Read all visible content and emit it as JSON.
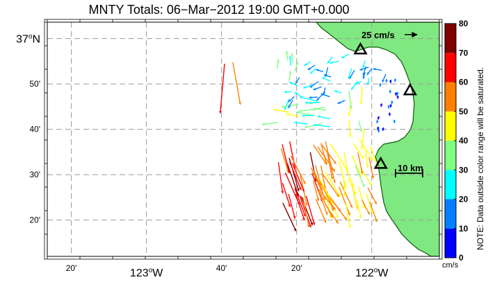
{
  "title": "MNTY Totals: 06−Mar−2012 19:00 GMT+0.000",
  "scale_arrow_label": "25 cm/s",
  "scale_bar_label": "10 km",
  "note": "NOTE: Data outside color range will be saturated.",
  "colorbar": {
    "unit": "cm/s",
    "ticks": [
      "0",
      "10",
      "20",
      "30",
      "40",
      "50",
      "60",
      "70",
      "80"
    ],
    "colors": [
      "#0000ff",
      "#0080ff",
      "#00ffff",
      "#80ff80",
      "#ffff00",
      "#ff8000",
      "#ff0000",
      "#800000"
    ]
  },
  "map": {
    "lat_labels": [
      {
        "lat": 37.0,
        "main": "37",
        "deg": "o",
        "suffix": "N"
      },
      {
        "lat": 36.8333,
        "main": "50'",
        "deg": "",
        "suffix": ""
      },
      {
        "lat": 36.6667,
        "main": "40'",
        "deg": "",
        "suffix": ""
      },
      {
        "lat": 36.5,
        "main": "30'",
        "deg": "",
        "suffix": ""
      },
      {
        "lat": 36.3333,
        "main": "20'",
        "deg": "",
        "suffix": ""
      }
    ],
    "lon_labels": [
      {
        "lon": -123.3333,
        "main": "20'",
        "deg": "",
        "suffix": "",
        "big": false
      },
      {
        "lon": -123.0,
        "main": "123",
        "deg": "o",
        "suffix": "W",
        "big": true
      },
      {
        "lon": -122.6667,
        "main": "40'",
        "deg": "",
        "suffix": "",
        "big": false
      },
      {
        "lon": -122.3333,
        "main": "20'",
        "deg": "",
        "suffix": "",
        "big": false
      },
      {
        "lon": -122.0,
        "main": "122",
        "deg": "o",
        "suffix": "W",
        "big": true
      }
    ],
    "extent": {
      "lon_min": -123.44,
      "lon_max": -121.7,
      "lat_min": 36.2,
      "lat_max": 37.06
    },
    "colors": {
      "land": "#80e880",
      "land_edge": "#0a5a0a",
      "grid": "#999999"
    },
    "sites": [
      {
        "name": "site-north",
        "lon": -122.05,
        "lat": 36.96
      },
      {
        "name": "site-east",
        "lon": -121.83,
        "lat": 36.81
      },
      {
        "name": "site-south",
        "lon": -121.96,
        "lat": 36.54
      }
    ]
  }
}
